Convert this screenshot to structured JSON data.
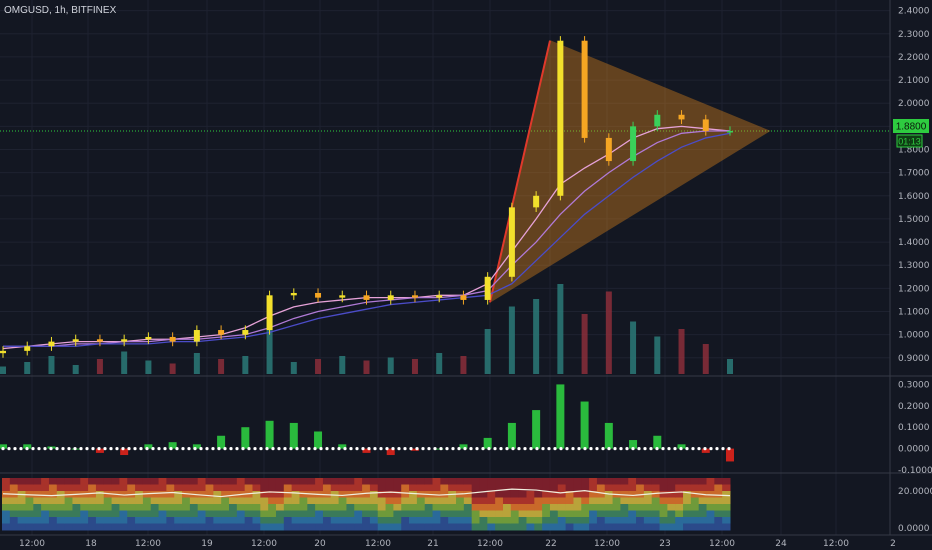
{
  "header": {
    "symbol_label": "OMGUSD, 1h, BITFINEX"
  },
  "price_badge": {
    "value": "1.8800",
    "countdown": "01:13"
  },
  "colors": {
    "background": "#131722",
    "bull": "#f2e02c",
    "bull_strong": "#3ad15a",
    "bear": "#f5a623",
    "bear_red": "#e0392b",
    "volume_teal": "#2b7a78",
    "volume_red": "#8b2e3a",
    "hist_green": "#2ecc40",
    "hist_red": "#e0241b",
    "triangle_fill": "#f7931a",
    "triangle_line_left": "#e0392b",
    "badge_green": "#2ecc40"
  },
  "chart_data": [
    {
      "type": "line",
      "title": "OMGUSD, 1h, BITFINEX",
      "series": [
        {
          "values": [
            0.93,
            0.95,
            0.97,
            0.98,
            0.97,
            0.98,
            0.99,
            0.97,
            1.02,
            1.0,
            1.02,
            1.17,
            1.18,
            1.16,
            1.17,
            1.15,
            1.17,
            1.16,
            1.17,
            1.15,
            1.25,
            1.55,
            1.6,
            2.27,
            1.85,
            1.75,
            1.9,
            1.95,
            1.93,
            1.88,
            1.88
          ]
        },
        {
          "values": [
            0.94,
            0.95,
            0.96,
            0.97,
            0.97,
            0.97,
            0.98,
            0.98,
            0.99,
            1.0,
            1.03,
            1.08,
            1.12,
            1.14,
            1.15,
            1.16,
            1.16,
            1.16,
            1.17,
            1.17,
            1.22,
            1.36,
            1.5,
            1.65,
            1.72,
            1.78,
            1.85,
            1.89,
            1.9,
            1.89,
            1.88
          ]
        },
        {
          "values": [
            0.95,
            0.95,
            0.95,
            0.96,
            0.96,
            0.97,
            0.97,
            0.98,
            0.98,
            0.99,
            1.0,
            1.03,
            1.07,
            1.1,
            1.12,
            1.14,
            1.15,
            1.16,
            1.16,
            1.17,
            1.19,
            1.3,
            1.4,
            1.52,
            1.62,
            1.7,
            1.77,
            1.83,
            1.87,
            1.88,
            1.88
          ]
        },
        {
          "values": [
            0.95,
            0.95,
            0.95,
            0.95,
            0.96,
            0.96,
            0.96,
            0.97,
            0.97,
            0.98,
            0.99,
            1.01,
            1.04,
            1.07,
            1.09,
            1.11,
            1.13,
            1.14,
            1.15,
            1.16,
            1.17,
            1.22,
            1.32,
            1.42,
            1.52,
            1.6,
            1.68,
            1.75,
            1.81,
            1.85,
            1.87
          ]
        }
      ],
      "ylim": [
        0.83,
        2.42
      ],
      "y_ticks": [
        "2.4000",
        "2.3000",
        "2.2000",
        "2.1000",
        "2.0000",
        "1.9000",
        "1.8000",
        "1.7000",
        "1.6000",
        "1.5000",
        "1.4000",
        "1.3000",
        "1.2000",
        "1.1000",
        "1.0000",
        "0.9000"
      ],
      "current_price": 1.88,
      "triangle": {
        "points": [
          [
            21.48,
            1.14
          ],
          [
            22.0,
            2.27
          ],
          [
            23.9,
            1.88
          ]
        ]
      },
      "volume": [
        5,
        8,
        12,
        6,
        10,
        15,
        9,
        7,
        14,
        10,
        12,
        35,
        8,
        10,
        12,
        9,
        11,
        10,
        14,
        12,
        30,
        45,
        50,
        60,
        40,
        55,
        35,
        25,
        30,
        20,
        10
      ],
      "grid": true
    },
    {
      "type": "bar",
      "title": "",
      "values": [
        0.02,
        0.02,
        0.01,
        0.0,
        -0.02,
        -0.03,
        0.02,
        0.03,
        0.02,
        0.06,
        0.1,
        0.13,
        0.12,
        0.08,
        0.02,
        -0.02,
        -0.03,
        -0.01,
        0.0,
        0.02,
        0.05,
        0.12,
        0.18,
        0.3,
        0.22,
        0.12,
        0.04,
        0.06,
        0.02,
        -0.02,
        -0.06
      ],
      "ylim": [
        -0.1,
        0.33
      ],
      "y_ticks": [
        "0.3000",
        "0.2000",
        "0.1000",
        "0.0000",
        "-0.1000"
      ]
    },
    {
      "type": "heatmap",
      "title": "",
      "line": [
        18.5,
        18.0,
        17.5,
        18.2,
        19.0,
        17.8,
        18.6,
        19.2,
        18.0,
        17.0,
        18.4,
        19.5,
        19.0,
        18.2,
        17.6,
        18.8,
        19.4,
        18.6,
        17.8,
        18.5,
        19.8,
        21.0,
        20.5,
        19.0,
        20.2,
        18.4,
        17.6,
        18.8,
        19.5,
        18.0,
        17.5
      ],
      "ylim": [
        -1.0,
        27.0
      ],
      "y_ticks": [
        "20.0000",
        "0.0000"
      ]
    }
  ],
  "x_axis": {
    "labels": [
      "12:00",
      "18",
      "12:00",
      "19",
      "12:00",
      "20",
      "12:00",
      "21",
      "12:00",
      "22",
      "12:00",
      "23",
      "12:00",
      "24",
      "12:00",
      "2"
    ]
  }
}
